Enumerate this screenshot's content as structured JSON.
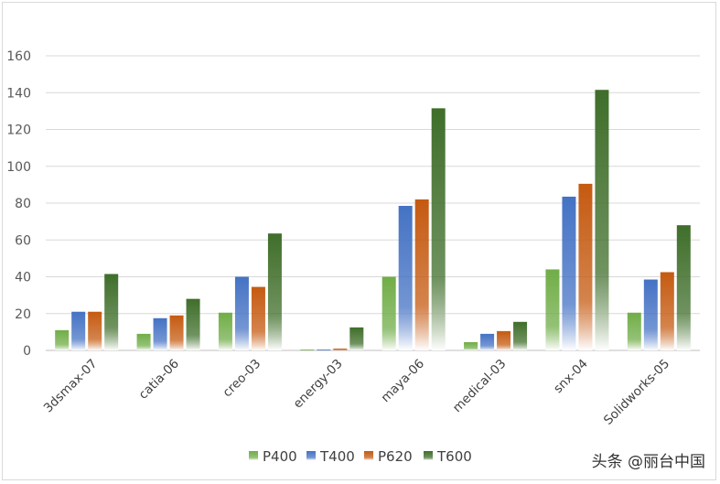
{
  "chart_data": {
    "type": "bar",
    "title": "",
    "xlabel": "",
    "ylabel": "",
    "ylim": [
      0,
      160
    ],
    "yticks": [
      0,
      20,
      40,
      60,
      80,
      100,
      120,
      140,
      160
    ],
    "categories": [
      "3dsmax-07",
      "catia-06",
      "creo-03",
      "energy-03",
      "maya-06",
      "medical-03",
      "snx-04",
      "Solidworks-05"
    ],
    "series": [
      {
        "name": "P400",
        "color": "#70ad47",
        "values": [
          11,
          9,
          20.5,
          0.5,
          40,
          4.5,
          44,
          20.5
        ]
      },
      {
        "name": "T400",
        "color": "#4472c4",
        "values": [
          21,
          17.5,
          40,
          0.5,
          78.5,
          9,
          83.5,
          38.5
        ]
      },
      {
        "name": "P620",
        "color": "#c55a11",
        "values": [
          21,
          19,
          34.5,
          1,
          82,
          10.5,
          90.5,
          42.5
        ]
      },
      {
        "name": "T600",
        "color": "#3f6e2a",
        "values": [
          41.5,
          28,
          63.5,
          12.5,
          131.5,
          15.5,
          141.5,
          68
        ]
      }
    ],
    "legend_position": "bottom",
    "grid": true
  },
  "watermark": "头条 @丽台中国"
}
